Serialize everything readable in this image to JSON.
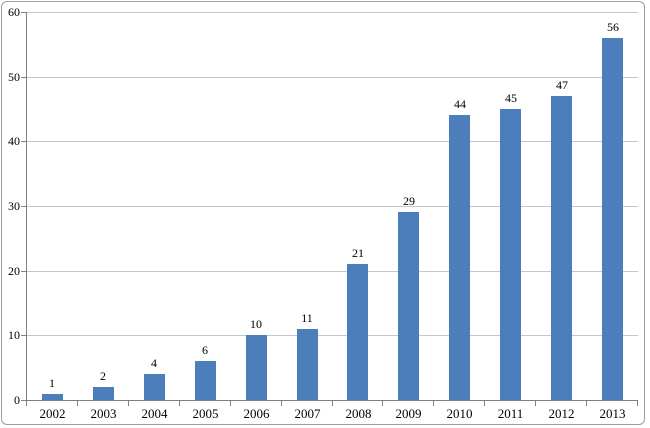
{
  "chart_data": {
    "type": "bar",
    "title": "",
    "xlabel": "",
    "ylabel": "",
    "categories": [
      "2002",
      "2003",
      "2004",
      "2005",
      "2006",
      "2007",
      "2008",
      "2009",
      "2010",
      "2011",
      "2012",
      "2013"
    ],
    "values": [
      1,
      2,
      4,
      6,
      10,
      11,
      21,
      29,
      44,
      45,
      47,
      56
    ],
    "data_labels": [
      "1",
      "2",
      "4",
      "6",
      "10",
      "11",
      "21",
      "29",
      "44",
      "45",
      "47",
      "56"
    ],
    "ylim": [
      0,
      60
    ],
    "yticks": [
      0,
      10,
      20,
      30,
      40,
      50,
      60
    ],
    "ytick_labels": [
      "0",
      "10",
      "20",
      "30",
      "40",
      "50",
      "60"
    ],
    "grid": true,
    "legend_position": "none",
    "colors": {
      "bar_fill": "#4d7ebc",
      "gridline": "#c6c6c6",
      "axis": "#808080",
      "label_text": "#000000",
      "frame_border": "#9d9d9d",
      "background": "#ffffff"
    }
  }
}
